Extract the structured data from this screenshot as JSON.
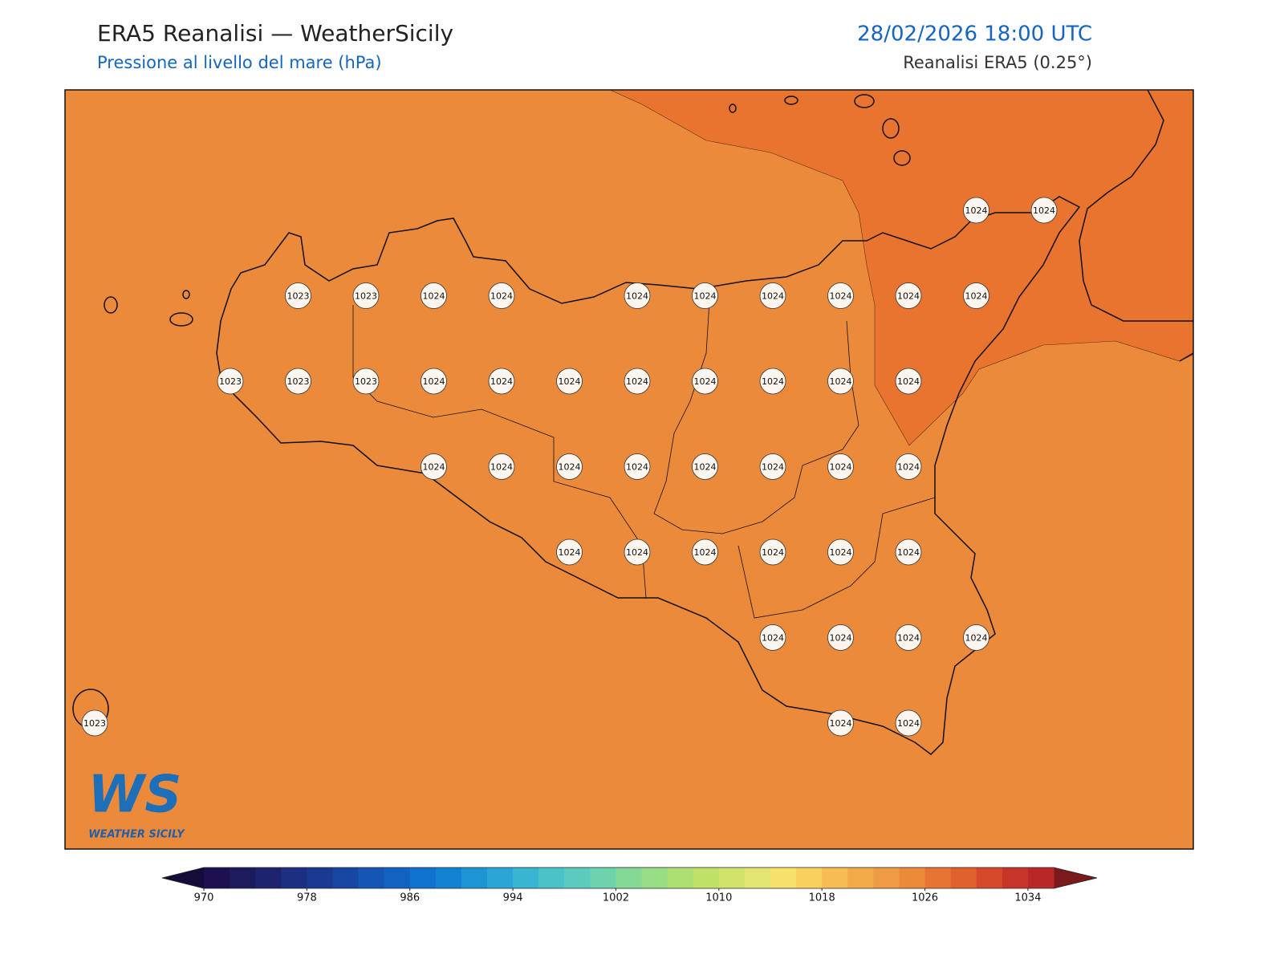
{
  "header": {
    "title": "ERA5 Reanalisi — WeatherSicily",
    "subtitle": "Pressione al livello del mare (hPa)",
    "datetime": "28/02/2026 18:00 UTC",
    "source": "Reanalisi ERA5 (0.25°)"
  },
  "stations": {
    "rows": [
      [
        null,
        null,
        null,
        null,
        null,
        null,
        null,
        null,
        null,
        null,
        null,
        null,
        null,
        1024,
        1024
      ],
      [
        null,
        null,
        null,
        1023,
        1023,
        1024,
        1024,
        null,
        1024,
        1024,
        1024,
        1024,
        1024,
        1024,
        null
      ],
      [
        null,
        null,
        1023,
        1023,
        1023,
        1024,
        1024,
        1024,
        1024,
        1024,
        1024,
        1024,
        1024,
        null,
        null
      ],
      [
        null,
        null,
        null,
        null,
        null,
        1024,
        1024,
        1024,
        1024,
        1024,
        1024,
        1024,
        1024,
        null,
        null
      ],
      [
        null,
        null,
        null,
        null,
        null,
        null,
        null,
        1024,
        1024,
        1024,
        1024,
        1024,
        1024,
        null,
        null
      ],
      [
        null,
        null,
        null,
        null,
        null,
        null,
        null,
        null,
        null,
        null,
        1024,
        1024,
        1024,
        1024,
        null
      ],
      [
        1023,
        null,
        null,
        null,
        null,
        null,
        null,
        null,
        null,
        null,
        null,
        1024,
        1024,
        null,
        null
      ]
    ]
  },
  "colorbar": {
    "lim": [
      970,
      1036
    ],
    "ticks": [
      970,
      978,
      986,
      994,
      1002,
      1010,
      1018,
      1026,
      1034
    ],
    "colors": [
      "#1e1050",
      "#1e1a5e",
      "#1d236e",
      "#1c2f80",
      "#1a3a92",
      "#1847a3",
      "#1555b3",
      "#1262c1",
      "#0f72cc",
      "#1283d2",
      "#1d94d4",
      "#2aa5d5",
      "#37b5d1",
      "#4bc2c8",
      "#5ccbbd",
      "#6ed3ad",
      "#84d997",
      "#97dd84",
      "#acdf71",
      "#bfe165",
      "#d1e36a",
      "#e2e56e",
      "#f7e16a",
      "#f9d05d",
      "#f7bd52",
      "#f3aa48",
      "#ef9b41",
      "#ec8a3a",
      "#e67533",
      "#e0602e",
      "#d44a2b",
      "#c7352a",
      "#b82828"
    ],
    "under_color": "#160c3a",
    "over_color": "#7a1a1a"
  },
  "logo": {
    "text": "WS",
    "caption": "WEATHER SICILY"
  }
}
